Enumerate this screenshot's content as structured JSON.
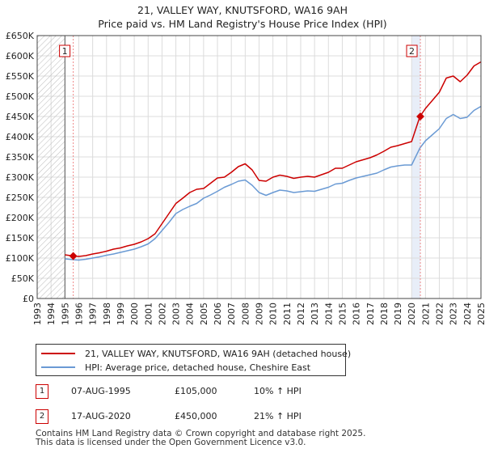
{
  "header": {
    "title_line1": "21, VALLEY WAY, KNUTSFORD, WA16 9AH",
    "title_line2": "Price paid vs. HM Land Registry's House Price Index (HPI)"
  },
  "colors": {
    "property": "#cc0000",
    "hpi": "#6a9ad4",
    "hatch": "#bbbbbb",
    "grid": "#dcdcdc",
    "marker_line": "#ee8888",
    "shade": "#e8eef8"
  },
  "legend": {
    "property_label": "21, VALLEY WAY, KNUTSFORD, WA16 9AH (detached house)",
    "hpi_label": "HPI: Average price, detached house, Cheshire East"
  },
  "sales": [
    {
      "num": "1",
      "date": "07-AUG-1995",
      "price": "£105,000",
      "hpi_change": "10% ↑ HPI"
    },
    {
      "num": "2",
      "date": "17-AUG-2020",
      "price": "£450,000",
      "hpi_change": "21% ↑ HPI"
    }
  ],
  "footer": {
    "line1": "Contains HM Land Registry data © Crown copyright and database right 2025.",
    "line2": "This data is licensed under the Open Government Licence v3.0."
  },
  "chart_data": {
    "type": "line",
    "title": "21, VALLEY WAY, KNUTSFORD, WA16 9AH",
    "subtitle": "Price paid vs. HM Land Registry's House Price Index (HPI)",
    "xlabel": "",
    "ylabel": "",
    "xlim": [
      1993,
      2025
    ],
    "ylim": [
      0,
      650000
    ],
    "grid": true,
    "legend_position": "below",
    "x_ticks": [
      "1993",
      "1994",
      "1995",
      "1996",
      "1997",
      "1998",
      "1999",
      "2000",
      "2001",
      "2002",
      "2003",
      "2004",
      "2005",
      "2006",
      "2007",
      "2008",
      "2009",
      "2010",
      "2011",
      "2012",
      "2013",
      "2014",
      "2015",
      "2016",
      "2017",
      "2018",
      "2019",
      "2020",
      "2021",
      "2022",
      "2023",
      "2024",
      "2025"
    ],
    "y_ticks": [
      {
        "value": 0,
        "label": "£0"
      },
      {
        "value": 50000,
        "label": "£50K"
      },
      {
        "value": 100000,
        "label": "£100K"
      },
      {
        "value": 150000,
        "label": "£150K"
      },
      {
        "value": 200000,
        "label": "£200K"
      },
      {
        "value": 250000,
        "label": "£250K"
      },
      {
        "value": 300000,
        "label": "£300K"
      },
      {
        "value": 350000,
        "label": "£350K"
      },
      {
        "value": 400000,
        "label": "£400K"
      },
      {
        "value": 450000,
        "label": "£450K"
      },
      {
        "value": 500000,
        "label": "£500K"
      },
      {
        "value": 550000,
        "label": "£550K"
      },
      {
        "value": 600000,
        "label": "£600K"
      },
      {
        "value": 650000,
        "label": "£650K"
      }
    ],
    "hatched_before": 1995.0,
    "shaded_range": [
      2020.0,
      2020.63
    ],
    "series": [
      {
        "name": "21, VALLEY WAY, KNUTSFORD, WA16 9AH (detached house)",
        "color": "#cc0000",
        "x": [
          1995.0,
          1995.6,
          1996.0,
          1996.5,
          1997.0,
          1997.5,
          1998.0,
          1998.5,
          1999.0,
          1999.5,
          2000.0,
          2000.5,
          2001.0,
          2001.5,
          2002.0,
          2002.5,
          2003.0,
          2003.5,
          2004.0,
          2004.5,
          2005.0,
          2005.5,
          2006.0,
          2006.5,
          2007.0,
          2007.5,
          2008.0,
          2008.5,
          2009.0,
          2009.5,
          2010.0,
          2010.5,
          2011.0,
          2011.5,
          2012.0,
          2012.5,
          2013.0,
          2013.5,
          2014.0,
          2014.5,
          2015.0,
          2015.5,
          2016.0,
          2016.5,
          2017.0,
          2017.5,
          2018.0,
          2018.5,
          2019.0,
          2019.5,
          2020.0,
          2020.6,
          2021.0,
          2021.5,
          2022.0,
          2022.5,
          2023.0,
          2023.5,
          2024.0,
          2024.5,
          2025.0
        ],
        "y": [
          108000,
          105000,
          104000,
          106000,
          110000,
          113000,
          117000,
          122000,
          125000,
          130000,
          134000,
          140000,
          148000,
          160000,
          185000,
          210000,
          235000,
          248000,
          262000,
          270000,
          272000,
          285000,
          298000,
          300000,
          312000,
          326000,
          333000,
          318000,
          292000,
          290000,
          300000,
          305000,
          302000,
          297000,
          300000,
          302000,
          300000,
          306000,
          312000,
          322000,
          322000,
          330000,
          338000,
          343000,
          348000,
          355000,
          364000,
          374000,
          378000,
          383000,
          388000,
          450000,
          470000,
          490000,
          510000,
          545000,
          550000,
          536000,
          552000,
          575000,
          585000
        ]
      },
      {
        "name": "HPI: Average price, detached house, Cheshire East",
        "color": "#6a9ad4",
        "x": [
          1995.0,
          1995.6,
          1996.0,
          1996.5,
          1997.0,
          1997.5,
          1998.0,
          1998.5,
          1999.0,
          1999.5,
          2000.0,
          2000.5,
          2001.0,
          2001.5,
          2002.0,
          2002.5,
          2003.0,
          2003.5,
          2004.0,
          2004.5,
          2005.0,
          2005.5,
          2006.0,
          2006.5,
          2007.0,
          2007.5,
          2008.0,
          2008.5,
          2009.0,
          2009.5,
          2010.0,
          2010.5,
          2011.0,
          2011.5,
          2012.0,
          2012.5,
          2013.0,
          2013.5,
          2014.0,
          2014.5,
          2015.0,
          2015.5,
          2016.0,
          2016.5,
          2017.0,
          2017.5,
          2018.0,
          2018.5,
          2019.0,
          2019.5,
          2020.0,
          2020.6,
          2021.0,
          2021.5,
          2022.0,
          2022.5,
          2023.0,
          2023.5,
          2024.0,
          2024.5,
          2025.0
        ],
        "y": [
          98000,
          96000,
          95000,
          97000,
          100000,
          103000,
          107000,
          110000,
          114000,
          118000,
          122000,
          128000,
          135000,
          148000,
          168000,
          188000,
          210000,
          220000,
          228000,
          235000,
          248000,
          256000,
          265000,
          275000,
          282000,
          290000,
          293000,
          280000,
          262000,
          255000,
          262000,
          268000,
          266000,
          262000,
          264000,
          266000,
          265000,
          270000,
          275000,
          283000,
          285000,
          292000,
          298000,
          302000,
          306000,
          310000,
          318000,
          325000,
          328000,
          330000,
          330000,
          372000,
          390000,
          405000,
          420000,
          445000,
          455000,
          445000,
          448000,
          465000,
          475000
        ]
      }
    ],
    "sale_markers": [
      {
        "label": "1",
        "x": 1995.6,
        "y": 105000
      },
      {
        "label": "2",
        "x": 2020.63,
        "y": 450000
      }
    ]
  }
}
